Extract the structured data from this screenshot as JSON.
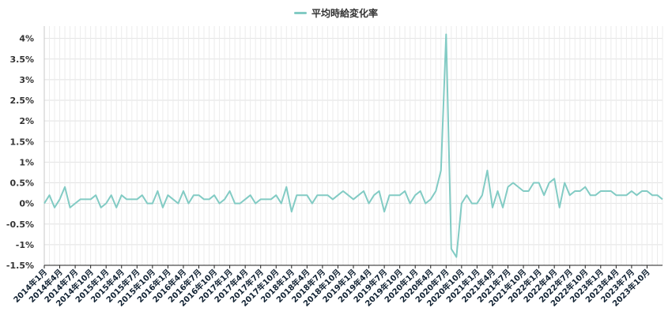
{
  "chart_data": {
    "type": "line",
    "legend_position": "top-center",
    "grid": true,
    "y_range": [
      -1.5,
      4.3
    ],
    "y_ticks": [
      "-1.5%",
      "-1%",
      "-0.5%",
      "0%",
      "0.5%",
      "1%",
      "1.5%",
      "2%",
      "2.5%",
      "3%",
      "3.5%",
      "4%"
    ],
    "y_tick_values": [
      -1.5,
      -1,
      -0.5,
      0,
      0.5,
      1,
      1.5,
      2,
      2.5,
      3,
      3.5,
      4
    ],
    "x_tick_labels": [
      "2014年1月",
      "2014年4月",
      "2014年7月",
      "2014年10月",
      "2015年1月",
      "2015年4月",
      "2015年7月",
      "2015年10月",
      "2016年1月",
      "2016年4月",
      "2016年7月",
      "2016年10月",
      "2017年1月",
      "2017年4月",
      "2017年7月",
      "2017年10月",
      "2018年1月",
      "2018年4月",
      "2018年7月",
      "2018年10月",
      "2019年1月",
      "2019年4月",
      "2019年7月",
      "2019年10月",
      "2020年1月",
      "2020年4月",
      "2020年7月",
      "2020年10月",
      "2021年1月",
      "2021年4月",
      "2021年7月",
      "2021年10月",
      "2022年1月",
      "2022年4月",
      "2022年7月",
      "2022年10月",
      "2023年1月",
      "2023年4月",
      "2023年7月",
      "2023年10月"
    ],
    "series": [
      {
        "name": "平均時給変化率",
        "color": "#82cbc4",
        "values": [
          0,
          0.2,
          -0.1,
          0.1,
          0.4,
          -0.1,
          0,
          0.1,
          0.1,
          0.1,
          0.2,
          -0.1,
          0,
          0.2,
          -0.1,
          0.2,
          0.1,
          0.1,
          0.1,
          0.2,
          0,
          0,
          0.3,
          -0.1,
          0.2,
          0.1,
          0,
          0.3,
          0,
          0.2,
          0.2,
          0.1,
          0.1,
          0.2,
          0,
          0.1,
          0.3,
          0,
          0,
          0.1,
          0.2,
          0,
          0.1,
          0.1,
          0.1,
          0.2,
          0,
          0.4,
          -0.2,
          0.2,
          0.2,
          0.2,
          0,
          0.2,
          0.2,
          0.2,
          0.1,
          0.2,
          0.3,
          0.2,
          0.1,
          0.2,
          0.3,
          0,
          0.2,
          0.3,
          -0.2,
          0.2,
          0.2,
          0.2,
          0.3,
          0,
          0.2,
          0.3,
          0,
          0.1,
          0.3,
          0.8,
          4.1,
          -1.1,
          -1.3,
          0,
          0.2,
          0,
          0,
          0.2,
          0.8,
          -0.1,
          0.3,
          -0.1,
          0.4,
          0.5,
          0.4,
          0.3,
          0.3,
          0.5,
          0.5,
          0.2,
          0.5,
          0.6,
          -0.1,
          0.5,
          0.2,
          0.3,
          0.3,
          0.4,
          0.2,
          0.2,
          0.3,
          0.3,
          0.3,
          0.2,
          0.2,
          0.2,
          0.3,
          0.2,
          0.3,
          0.3,
          0.2,
          0.2,
          0.1
        ]
      }
    ]
  }
}
